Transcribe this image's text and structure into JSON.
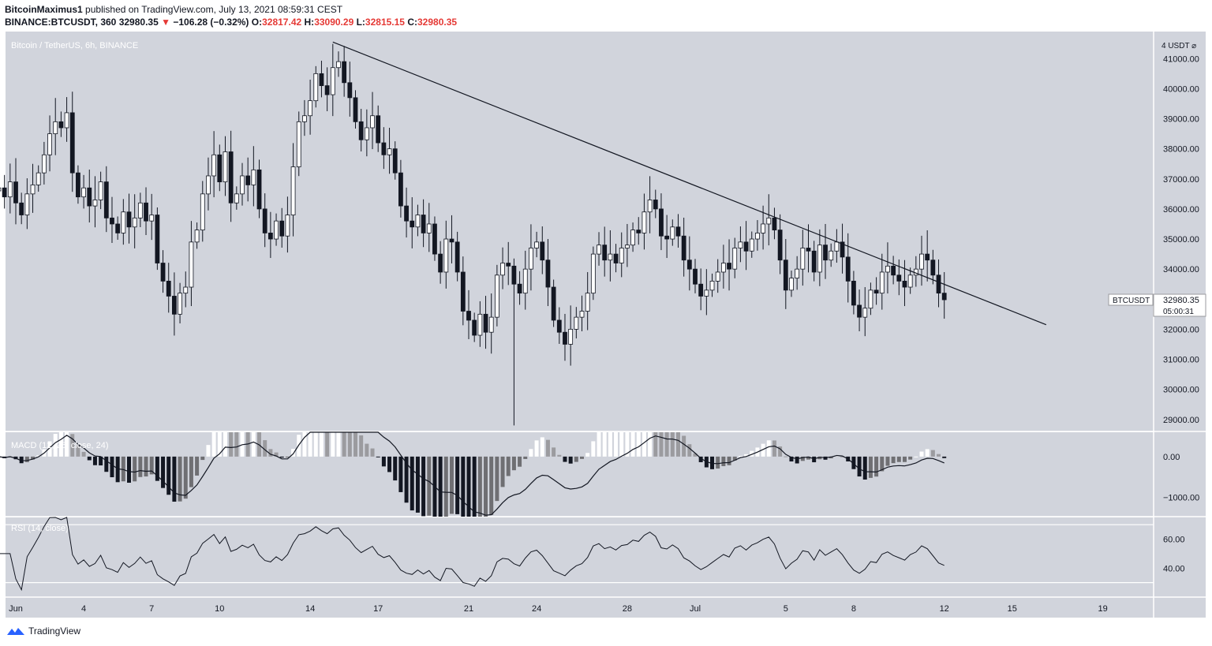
{
  "header": {
    "user": "BitcoinMaximus1",
    "published_text": "published on TradingView.com, July 13, 2021 08:59:31 CEST",
    "symbol_line": {
      "symbol": "BINANCE:BTCUSDT, 360",
      "price": "32980.35",
      "arrow": "▼",
      "change": "−106.28 (−0.32%)",
      "o_label": "O:",
      "o": "32817.42",
      "h_label": "H:",
      "h": "33090.29",
      "l_label": "L:",
      "l": "32815.15",
      "c_label": "C:",
      "c": "32980.35"
    }
  },
  "chart_data": {
    "type": "candlestick",
    "title": "Bitcoin / TetherUS, 6h, BINANCE",
    "currency_label": "4 USDT ⌀",
    "price_ticks": [
      41000,
      40000,
      39000,
      38000,
      37000,
      36000,
      35000,
      34000,
      33000,
      32000,
      31000,
      30000,
      29000
    ],
    "price_tick_labels": [
      "41000.00",
      "40000.00",
      "39000.00",
      "38000.00",
      "37000.00",
      "36000.00",
      "35000.00",
      "34000.00",
      "33000.00",
      "32000.00",
      "31000.00",
      "30000.00",
      "29000.00"
    ],
    "ylim": [
      28600,
      41900
    ],
    "x_start_date": "2021-05-31",
    "x_end_date": "2021-07-20",
    "x_ticks": [
      {
        "date": "2021-06-01",
        "label": "Jun"
      },
      {
        "date": "2021-06-04",
        "label": "4"
      },
      {
        "date": "2021-06-07",
        "label": "7"
      },
      {
        "date": "2021-06-10",
        "label": "10"
      },
      {
        "date": "2021-06-14",
        "label": "14"
      },
      {
        "date": "2021-06-17",
        "label": "17"
      },
      {
        "date": "2021-06-21",
        "label": "21"
      },
      {
        "date": "2021-06-24",
        "label": "24"
      },
      {
        "date": "2021-06-28",
        "label": "28"
      },
      {
        "date": "2021-07-01",
        "label": "Jul"
      },
      {
        "date": "2021-07-05",
        "label": "5"
      },
      {
        "date": "2021-07-08",
        "label": "8"
      },
      {
        "date": "2021-07-12",
        "label": "12"
      },
      {
        "date": "2021-07-15",
        "label": "15"
      },
      {
        "date": "2021-07-19",
        "label": "19"
      }
    ],
    "close_series": [
      36700,
      36400,
      36900,
      36200,
      35800,
      36500,
      36800,
      37200,
      37800,
      38500,
      38900,
      38700,
      39200,
      37200,
      36400,
      36700,
      36100,
      36300,
      36900,
      35700,
      35500,
      35200,
      35900,
      35400,
      35700,
      36200,
      35600,
      35800,
      34200,
      33600,
      33100,
      32500,
      33200,
      33400,
      34900,
      35300,
      36500,
      37100,
      37800,
      36900,
      37900,
      36200,
      36500,
      37100,
      36800,
      37300,
      36000,
      35200,
      35000,
      35600,
      35100,
      35800,
      37400,
      38900,
      39100,
      39600,
      40500,
      40100,
      39800,
      40700,
      40900,
      40200,
      39700,
      38900,
      38300,
      38700,
      39100,
      38200,
      37800,
      38000,
      37200,
      36100,
      35600,
      35400,
      35800,
      35200,
      35500,
      34500,
      33900,
      35000,
      34900,
      33900,
      32600,
      32300,
      31800,
      32500,
      31900,
      32400,
      33800,
      34200,
      34100,
      33500,
      33200,
      34000,
      34700,
      34900,
      34300,
      33400,
      32300,
      31900,
      31500,
      32000,
      32400,
      32600,
      33200,
      34500,
      34800,
      34300,
      34500,
      34200,
      34700,
      34800,
      35300,
      35200,
      35900,
      36300,
      36000,
      35100,
      35000,
      35400,
      35100,
      34300,
      34000,
      33500,
      33100,
      33300,
      33600,
      33900,
      34200,
      34000,
      34700,
      34900,
      34600,
      35000,
      35200,
      35500,
      35700,
      35300,
      34300,
      33300,
      33700,
      34000,
      34700,
      34600,
      33900,
      34800,
      34300,
      34600,
      34900,
      34400,
      33600,
      32800,
      32400,
      32700,
      33300,
      33200,
      33900,
      34100,
      33800,
      33600,
      33400,
      33800,
      34000,
      34500,
      34300,
      33800,
      33200,
      32980
    ],
    "lows": [
      {
        "label": "june-22-wick-low",
        "value": 28800
      }
    ],
    "trendline": {
      "from": {
        "date": "2021-06-15",
        "value": 41550
      },
      "to": {
        "date": "2021-07-16 12:00",
        "value": 32150
      }
    },
    "last_price_label": "BTCUSDT",
    "last_price": "32980.35",
    "countdown": "05:00:31",
    "macd": {
      "title": "MACD (12, 26, close, 24)",
      "tick_labels": [
        "0.00",
        "−1000.00"
      ],
      "ticks": [
        0,
        -1000
      ],
      "ylim": [
        -1480,
        600
      ]
    },
    "rsi": {
      "title": "RSI (14, close)",
      "tick_labels": [
        "60.00",
        "40.00"
      ],
      "ticks": [
        60,
        40
      ],
      "upper_band": 70,
      "lower_band": 30,
      "ylim": [
        20,
        75
      ]
    },
    "grid": true
  },
  "colors": {
    "plot_bg": "#d1d4dc",
    "bull_body": "#ffffff",
    "bear_body": "#131722",
    "line": "#131722",
    "axis_text": "#131722",
    "hist_grey": "#9b9b9f",
    "red": "#e53935"
  },
  "footer": {
    "logo_icon": "tradingview-logo-icon",
    "brand": "TradingView"
  }
}
